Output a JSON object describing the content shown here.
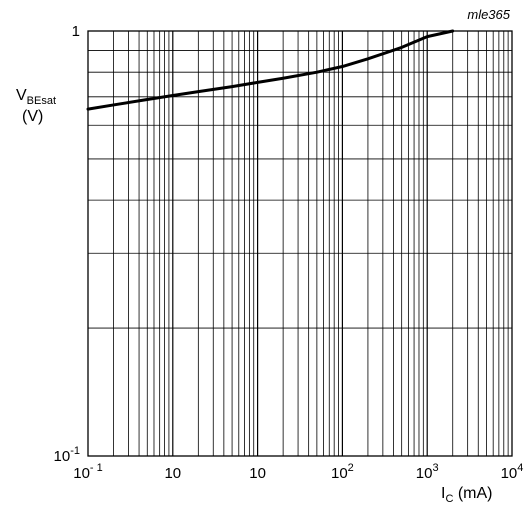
{
  "chart_data": {
    "type": "line",
    "figure_id": "mle365",
    "x_axis": {
      "scale": "log",
      "range": [
        0.1,
        10000
      ],
      "ticks": [
        {
          "value": 0.1,
          "base": "10",
          "exp": "- 1"
        },
        {
          "value": 1,
          "base": "10",
          "exp": ""
        },
        {
          "value": 10,
          "base": "10",
          "exp": ""
        },
        {
          "value": 100,
          "base": "10",
          "exp": "2"
        },
        {
          "value": 1000,
          "base": "10",
          "exp": "3"
        },
        {
          "value": 10000,
          "base": "10",
          "exp": "4"
        }
      ],
      "label": {
        "main": "I",
        "sub": "C",
        "unit": " (mA)"
      }
    },
    "y_axis": {
      "scale": "log",
      "range": [
        0.1,
        1
      ],
      "ticks": [
        {
          "value": 1,
          "base": "1",
          "exp": ""
        },
        {
          "value": 0.1,
          "base": "10",
          "exp": "-1"
        }
      ],
      "label": {
        "main": "V",
        "sub": "BEsat",
        "unit": "(V)"
      }
    },
    "grid": true,
    "series": [
      {
        "x": [
          0.1,
          0.2,
          0.5,
          1,
          2,
          5,
          10,
          20,
          50,
          100,
          200,
          500,
          1000,
          2000
        ],
        "y": [
          0.655,
          0.67,
          0.69,
          0.705,
          0.72,
          0.74,
          0.757,
          0.774,
          0.8,
          0.825,
          0.86,
          0.915,
          0.97,
          1.0
        ]
      }
    ]
  }
}
